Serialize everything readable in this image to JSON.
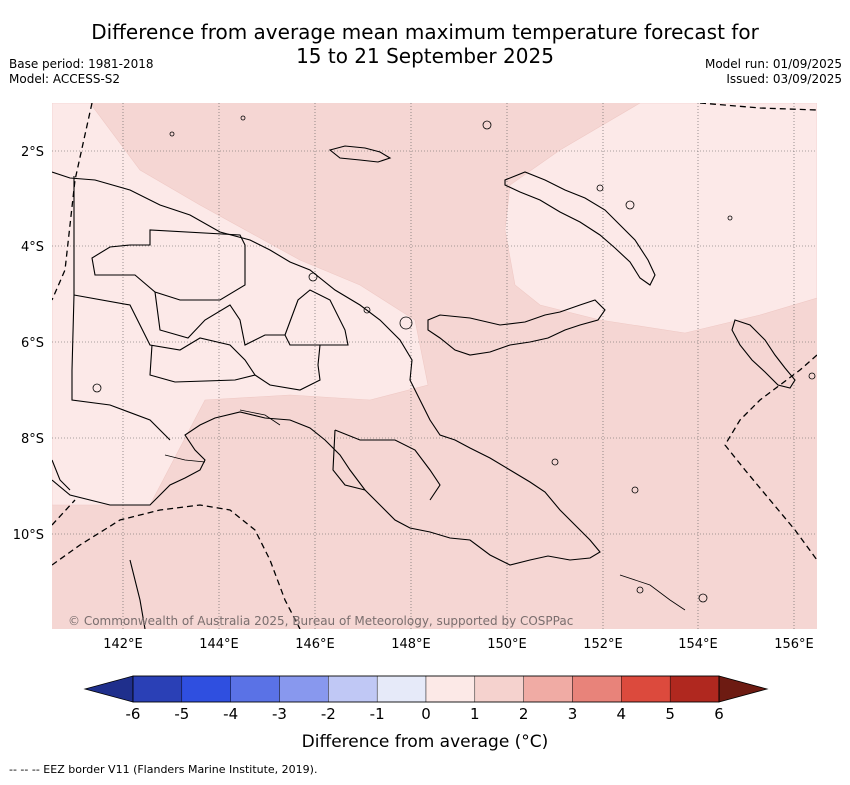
{
  "title_line1": "Difference from average mean maximum temperature forecast for",
  "title_line2": "15 to 21 September 2025",
  "base_period": "Base period: 1981-2018",
  "model": "Model: ACCESS-S2",
  "model_run": "Model run: 01/09/2025",
  "issued": "Issued: 03/09/2025",
  "copyright": "© Commonwealth of Australia 2025, Bureau of Meteorology, supported by COSPPac",
  "colorbar_label": "Difference from average (°C)",
  "footnote": "--  --  -- EEZ border V11 (Flanders Marine Institute, 2019).",
  "x_ticks": [
    "142°E",
    "144°E",
    "146°E",
    "148°E",
    "150°E",
    "152°E",
    "154°E",
    "156°E"
  ],
  "y_ticks": [
    "2°S",
    "4°S",
    "6°S",
    "8°S",
    "10°S"
  ],
  "colorbar_ticks": [
    "-6",
    "-5",
    "-4",
    "-3",
    "-2",
    "-1",
    "0",
    "1",
    "2",
    "3",
    "4",
    "5",
    "6"
  ],
  "colorbar_colors": [
    "#1f2f8c",
    "#2a40b6",
    "#2f4fe0",
    "#5a72e6",
    "#8898ee",
    "#c0c8f5",
    "#e6eaf9",
    "#fce9e7",
    "#f5d2ce",
    "#f0aba4",
    "#e8837a",
    "#dc4a3d",
    "#b0281f",
    "#6d1b12"
  ],
  "map_colors": {
    "zone_1_2": "#f5d6d3",
    "zone_0_1": "#fce9e8"
  }
}
